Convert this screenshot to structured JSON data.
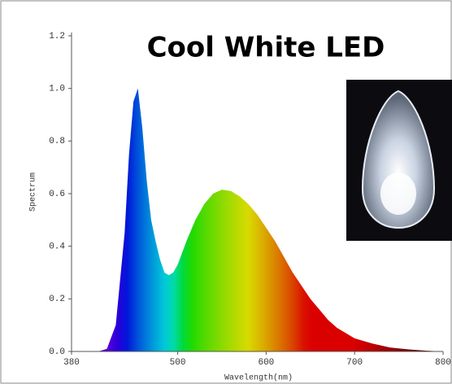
{
  "chart_data": {
    "type": "area",
    "title": "Cool White LED",
    "x_label": "Wavelength(nm)",
    "y_label": "Spectrum",
    "x": [
      410,
      420,
      430,
      440,
      445,
      450,
      455,
      460,
      465,
      470,
      475,
      480,
      485,
      490,
      495,
      500,
      510,
      520,
      530,
      540,
      550,
      560,
      570,
      580,
      590,
      600,
      610,
      620,
      630,
      640,
      650,
      660,
      670,
      680,
      690,
      700,
      720,
      740,
      760,
      780,
      800
    ],
    "values": [
      0,
      0.01,
      0.1,
      0.45,
      0.75,
      0.95,
      1.0,
      0.85,
      0.65,
      0.5,
      0.42,
      0.35,
      0.3,
      0.29,
      0.3,
      0.33,
      0.42,
      0.5,
      0.56,
      0.6,
      0.615,
      0.61,
      0.59,
      0.56,
      0.52,
      0.47,
      0.42,
      0.36,
      0.3,
      0.25,
      0.2,
      0.16,
      0.12,
      0.09,
      0.07,
      0.05,
      0.03,
      0.015,
      0.008,
      0.003,
      0
    ],
    "xlim": [
      380,
      800
    ],
    "ylim": [
      0,
      1.2
    ],
    "xticks": [
      380,
      500,
      600,
      700,
      800
    ],
    "yticks": [
      {
        "value": 0,
        "label": "0.0"
      },
      0.2,
      0.4,
      0.6,
      0.8,
      {
        "value": 1,
        "label": "1.0"
      },
      1.2
    ],
    "fill": "spectral"
  }
}
